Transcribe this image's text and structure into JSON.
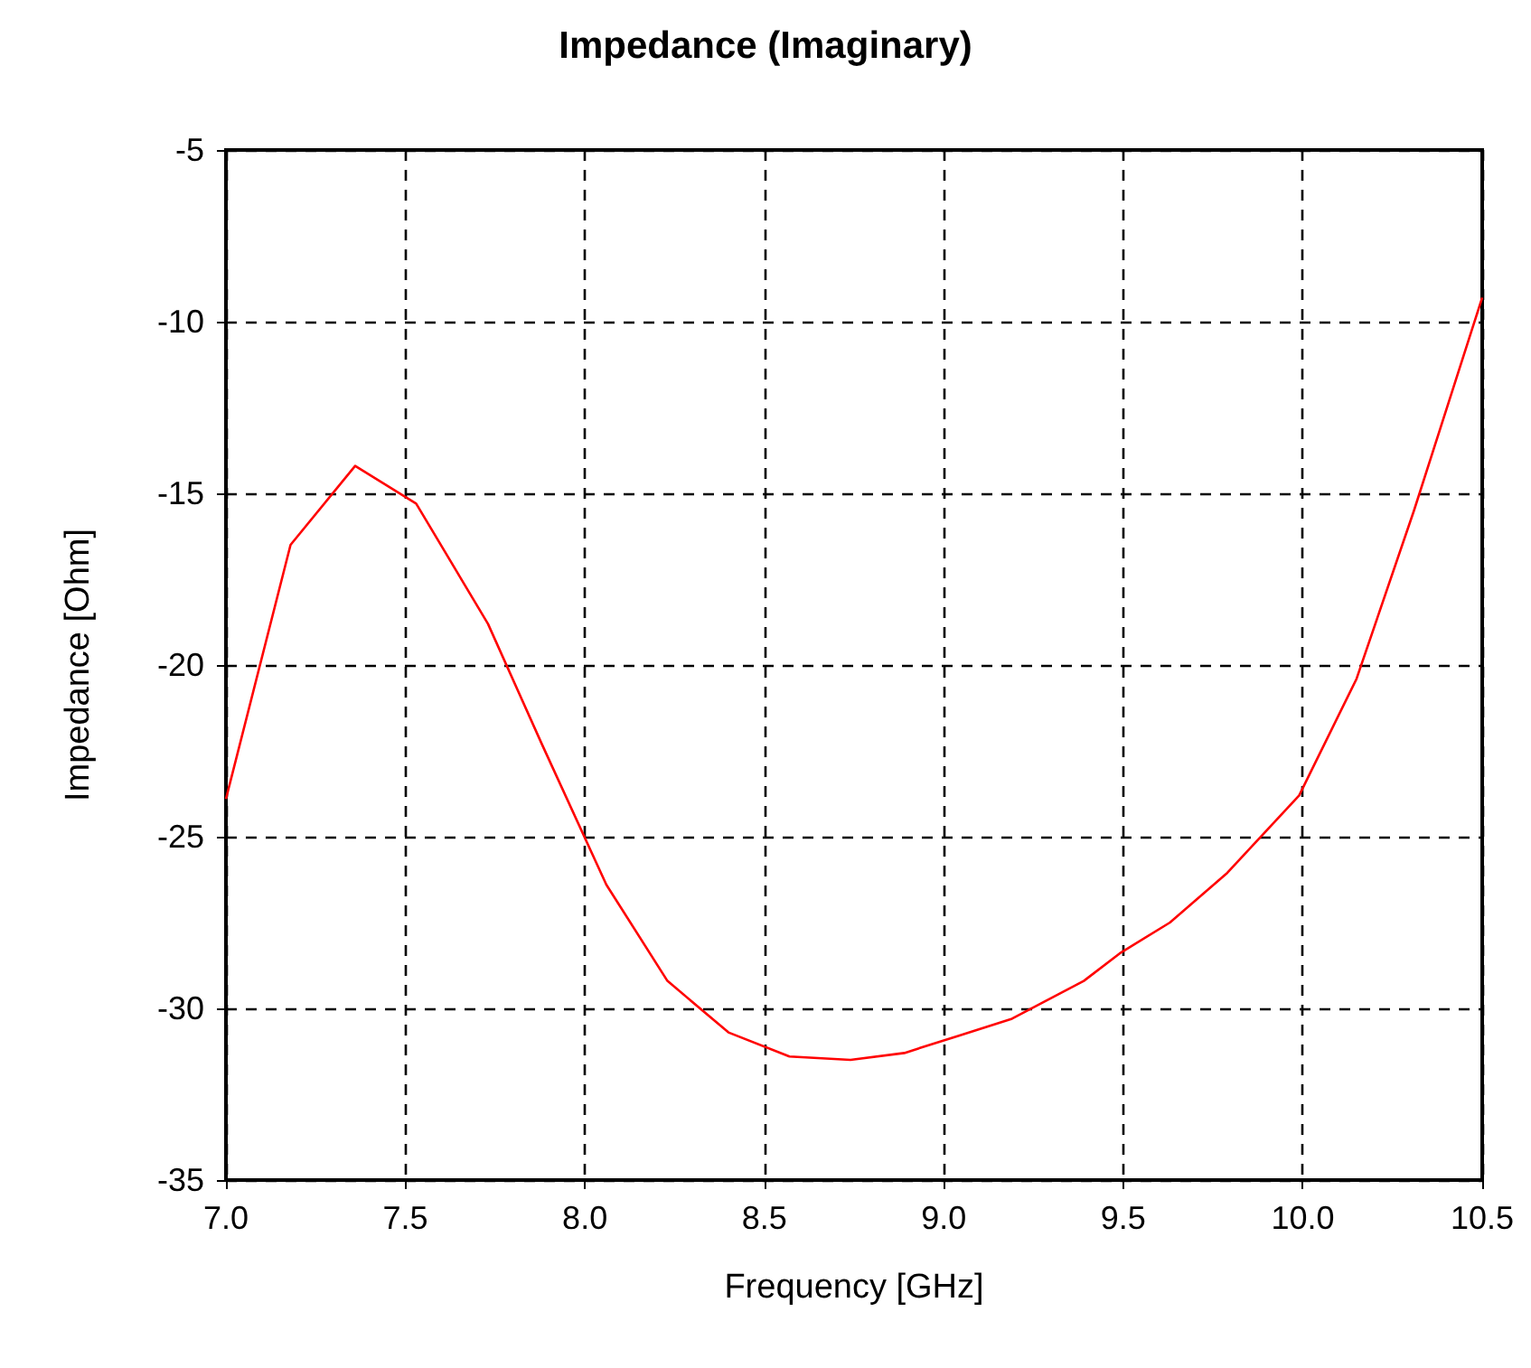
{
  "chart_data": {
    "type": "line",
    "title": "Impedance (Imaginary)",
    "xlabel": "Frequency [GHz]",
    "ylabel": "Impedance [Ohm]",
    "xlim": [
      7,
      10.5
    ],
    "xticks": [
      {
        "value": 7,
        "label": "7.0"
      },
      {
        "value": 7.5,
        "label": "7.5"
      },
      {
        "value": 8,
        "label": "8.0"
      },
      {
        "value": 8.5,
        "label": "8.5"
      },
      {
        "value": 9,
        "label": "9.0"
      },
      {
        "value": 9.5,
        "label": "9.5"
      },
      {
        "value": 10,
        "label": "10.0"
      },
      {
        "value": 10.5,
        "label": "10.5"
      }
    ],
    "ylim": [
      -35,
      -5
    ],
    "yticks": [
      -35,
      -30,
      -25,
      -20,
      -15,
      -10,
      -5
    ],
    "grid": true,
    "line_style": "solid",
    "marker": "none",
    "x": [
      7.0,
      7.18,
      7.36,
      7.53,
      7.73,
      7.88,
      8.06,
      8.23,
      8.4,
      8.57,
      8.74,
      8.89,
      9.04,
      9.19,
      9.39,
      9.49,
      9.63,
      9.79,
      9.99,
      10.15,
      10.31,
      10.5
    ],
    "series": [
      {
        "color": "#ff0000",
        "values": [
          -23.9,
          -16.5,
          -14.2,
          -15.3,
          -18.8,
          -22.3,
          -26.4,
          -29.2,
          -30.7,
          -31.4,
          -31.5,
          -31.3,
          -30.8,
          -30.3,
          -29.2,
          -28.4,
          -27.5,
          -26.05,
          -23.8,
          -20.4,
          -15.5,
          -9.3
        ]
      }
    ]
  }
}
